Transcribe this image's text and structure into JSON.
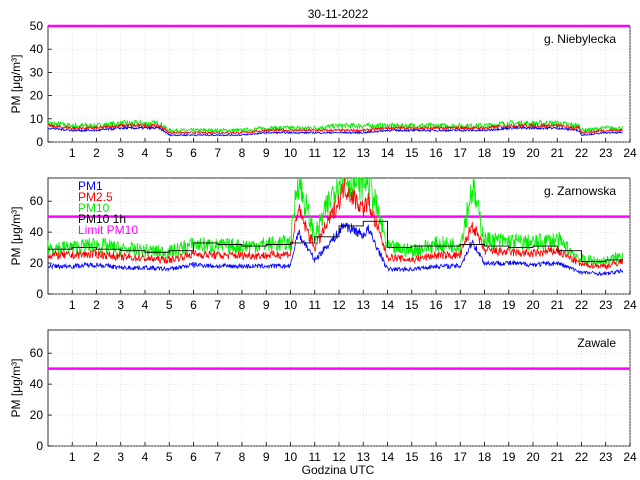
{
  "page": {
    "title": "30-11-2022",
    "xlabel": "Godzina UTC"
  },
  "colors": {
    "pm1": "#0000ff",
    "pm25": "#ff0000",
    "pm10": "#00ee00",
    "pm10_1h": "#000000",
    "limit": "#ff00ff"
  },
  "chart_data": [
    {
      "type": "line",
      "station": "g. Niebylecka",
      "ylabel": "PM [μg/m³]",
      "ylim": [
        0,
        50
      ],
      "yticks": [
        0,
        10,
        20,
        30,
        40,
        50
      ],
      "xlim": [
        0,
        24
      ],
      "xticks": [
        1,
        2,
        3,
        4,
        5,
        6,
        7,
        8,
        9,
        10,
        11,
        12,
        13,
        14,
        15,
        16,
        17,
        18,
        19,
        20,
        21,
        22,
        23,
        24
      ],
      "limit_pm10": 50,
      "legend": [],
      "series": [
        {
          "key": "pm1",
          "x": [
            0,
            1,
            2,
            3,
            4,
            4.6,
            5,
            6,
            7,
            8,
            9,
            10,
            11,
            12,
            13,
            14,
            15,
            16,
            17,
            18,
            19,
            20,
            21,
            21.9,
            22,
            23,
            23.7
          ],
          "y": [
            6,
            5,
            5,
            6,
            6,
            6,
            3,
            3,
            3,
            3,
            4,
            4,
            4,
            4,
            4,
            5,
            5,
            5,
            5,
            5,
            6,
            6,
            6,
            5,
            3,
            4,
            4
          ]
        },
        {
          "key": "pm25",
          "x": [
            0,
            1,
            2,
            3,
            4,
            4.6,
            5,
            6,
            7,
            8,
            9,
            10,
            11,
            12,
            13,
            14,
            15,
            16,
            17,
            18,
            19,
            20,
            21,
            21.9,
            22,
            23,
            23.7
          ],
          "y": [
            7,
            6,
            6,
            7,
            7,
            7,
            4,
            4,
            4,
            4,
            5,
            5,
            5,
            5,
            5,
            6,
            6,
            6,
            6,
            6,
            7,
            7,
            7,
            6,
            4,
            5,
            5
          ]
        },
        {
          "key": "pm10",
          "x": [
            0,
            1,
            2,
            3,
            4,
            4.6,
            5,
            6,
            7,
            8,
            9,
            10,
            11,
            12,
            13,
            14,
            15,
            16,
            17,
            18,
            19,
            20,
            21,
            21.9,
            22,
            23,
            23.7
          ],
          "y": [
            8,
            7,
            7,
            8,
            8,
            8,
            5,
            5,
            5,
            5,
            6,
            6,
            6,
            7,
            7,
            7,
            7,
            7,
            7,
            7,
            8,
            8,
            8,
            7,
            5,
            6,
            6
          ]
        }
      ]
    },
    {
      "type": "line",
      "station": "g. Zarnowska",
      "ylabel": "PM [μg/m³]",
      "ylim": [
        0,
        75
      ],
      "yticks": [
        0,
        20,
        40,
        60
      ],
      "xlim": [
        0,
        24
      ],
      "xticks": [
        1,
        2,
        3,
        4,
        5,
        6,
        7,
        8,
        9,
        10,
        11,
        12,
        13,
        14,
        15,
        16,
        17,
        18,
        19,
        20,
        21,
        22,
        23,
        24
      ],
      "limit_pm10": 50,
      "legend": [
        "PM1",
        "PM2.5",
        "PM10",
        "PM10 1h",
        "Limit PM10"
      ],
      "series": [
        {
          "key": "pm1",
          "x": [
            0,
            1,
            2,
            3,
            4,
            5,
            6,
            7,
            8,
            9,
            10,
            10.3,
            11,
            12,
            12.2,
            13,
            13.2,
            14,
            15,
            16,
            17,
            17.5,
            18,
            19,
            20,
            21,
            22,
            23,
            23.7
          ],
          "y": [
            18,
            18,
            19,
            17,
            17,
            16,
            19,
            18,
            18,
            18,
            18,
            40,
            22,
            40,
            45,
            38,
            42,
            16,
            16,
            18,
            18,
            34,
            20,
            20,
            19,
            20,
            14,
            13,
            15
          ]
        },
        {
          "key": "pm25",
          "x": [
            0,
            1,
            2,
            3,
            4,
            5,
            6,
            7,
            8,
            9,
            10,
            10.3,
            11,
            12,
            12.2,
            13,
            13.2,
            14,
            15,
            16,
            17,
            17.5,
            18,
            19,
            20,
            21,
            22,
            23,
            23.7
          ],
          "y": [
            25,
            25,
            26,
            24,
            23,
            22,
            26,
            25,
            25,
            25,
            26,
            55,
            30,
            60,
            70,
            55,
            60,
            24,
            22,
            25,
            25,
            45,
            28,
            27,
            26,
            28,
            19,
            18,
            21
          ]
        },
        {
          "key": "pm10",
          "x": [
            0,
            1,
            2,
            3,
            4,
            5,
            6,
            7,
            8,
            9,
            10,
            10.3,
            11,
            12,
            12.2,
            13,
            13.2,
            14,
            15,
            16,
            17,
            17.5,
            18,
            19,
            20,
            21,
            22,
            23,
            23.7
          ],
          "y": [
            30,
            30,
            32,
            29,
            28,
            27,
            32,
            31,
            31,
            32,
            33,
            75,
            37,
            75,
            75,
            72,
            75,
            30,
            28,
            32,
            32,
            70,
            35,
            34,
            33,
            35,
            22,
            21,
            25
          ]
        },
        {
          "key": "pm10_1h",
          "step": true,
          "x": [
            0,
            1,
            2,
            3,
            4,
            5,
            6,
            7,
            8,
            9,
            10,
            11,
            12,
            13,
            14,
            15,
            16,
            17,
            18,
            19,
            20,
            21,
            22,
            23,
            23.7
          ],
          "y": [
            29,
            30,
            29,
            28,
            27,
            28,
            33,
            32,
            31,
            32,
            33,
            37,
            44,
            47,
            30,
            31,
            31,
            32,
            31,
            30,
            31,
            28,
            21,
            22,
            22
          ]
        }
      ]
    },
    {
      "type": "line",
      "station": "Zawale",
      "ylabel": "PM [μg/m³]",
      "ylim": [
        0,
        75
      ],
      "yticks": [
        0,
        20,
        40,
        60
      ],
      "xlim": [
        0,
        24
      ],
      "xticks": [
        1,
        2,
        3,
        4,
        5,
        6,
        7,
        8,
        9,
        10,
        11,
        12,
        13,
        14,
        15,
        16,
        17,
        18,
        19,
        20,
        21,
        22,
        23,
        24
      ],
      "limit_pm10": 50,
      "legend": [],
      "series": []
    }
  ]
}
